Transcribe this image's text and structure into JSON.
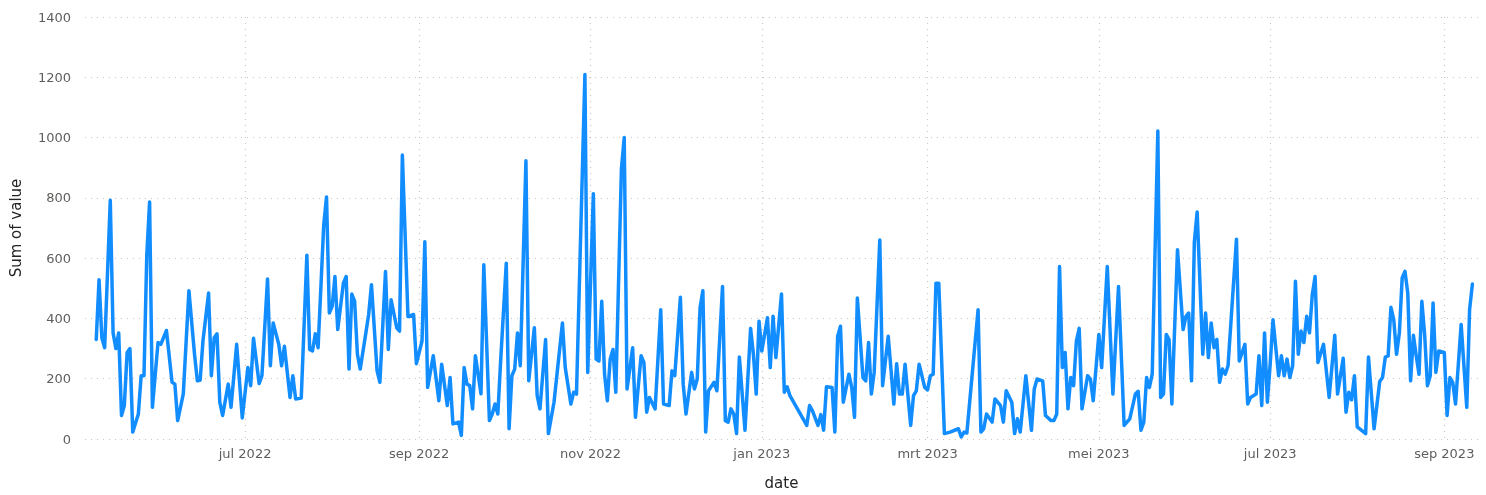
{
  "chart_data": {
    "type": "line",
    "xlabel": "date",
    "ylabel": "Sum of value",
    "grid": true,
    "marker": "none",
    "line_style": "solid",
    "xlim": [
      "2022-05-05",
      "2023-09-13"
    ],
    "xticks": [
      {
        "value": "2022-07-01",
        "label": "jul 2022"
      },
      {
        "value": "2022-09-01",
        "label": "sep 2022"
      },
      {
        "value": "2022-11-01",
        "label": "nov 2022"
      },
      {
        "value": "2023-01-01",
        "label": "jan 2023"
      },
      {
        "value": "2023-03-01",
        "label": "mrt 2023"
      },
      {
        "value": "2023-05-01",
        "label": "mei 2023"
      },
      {
        "value": "2023-07-01",
        "label": "jul 2023"
      },
      {
        "value": "2023-09-01",
        "label": "sep 2023"
      }
    ],
    "ylim": [
      0,
      1400
    ],
    "yticks": [
      0,
      200,
      400,
      600,
      800,
      1000,
      1200,
      1400
    ],
    "series": [
      {
        "color": "#118dff",
        "x": [
          "2022-05-09",
          "2022-05-10",
          "2022-05-11",
          "2022-05-12",
          "2022-05-14",
          "2022-05-15",
          "2022-05-16",
          "2022-05-17",
          "2022-05-18",
          "2022-05-19",
          "2022-05-20",
          "2022-05-21",
          "2022-05-22",
          "2022-05-24",
          "2022-05-25",
          "2022-05-26",
          "2022-05-27",
          "2022-05-28",
          "2022-05-29",
          "2022-05-31",
          "2022-06-01",
          "2022-06-03",
          "2022-06-05",
          "2022-06-06",
          "2022-06-07",
          "2022-06-09",
          "2022-06-11",
          "2022-06-13",
          "2022-06-14",
          "2022-06-15",
          "2022-06-16",
          "2022-06-18",
          "2022-06-19",
          "2022-06-20",
          "2022-06-21",
          "2022-06-22",
          "2022-06-23",
          "2022-06-25",
          "2022-06-26",
          "2022-06-28",
          "2022-06-30",
          "2022-07-02",
          "2022-07-03",
          "2022-07-04",
          "2022-07-06",
          "2022-07-07",
          "2022-07-09",
          "2022-07-10",
          "2022-07-11",
          "2022-07-13",
          "2022-07-14",
          "2022-07-15",
          "2022-07-17",
          "2022-07-18",
          "2022-07-19",
          "2022-07-21",
          "2022-07-23",
          "2022-07-24",
          "2022-07-25",
          "2022-07-26",
          "2022-07-27",
          "2022-07-29",
          "2022-07-30",
          "2022-07-31",
          "2022-08-01",
          "2022-08-02",
          "2022-08-03",
          "2022-08-05",
          "2022-08-06",
          "2022-08-07",
          "2022-08-08",
          "2022-08-09",
          "2022-08-10",
          "2022-08-11",
          "2022-08-13",
          "2022-08-14",
          "2022-08-15",
          "2022-08-17",
          "2022-08-18",
          "2022-08-20",
          "2022-08-21",
          "2022-08-22",
          "2022-08-24",
          "2022-08-25",
          "2022-08-26",
          "2022-08-28",
          "2022-08-30",
          "2022-08-31",
          "2022-09-02",
          "2022-09-03",
          "2022-09-04",
          "2022-09-06",
          "2022-09-08",
          "2022-09-09",
          "2022-09-11",
          "2022-09-12",
          "2022-09-13",
          "2022-09-15",
          "2022-09-16",
          "2022-09-17",
          "2022-09-18",
          "2022-09-19",
          "2022-09-20",
          "2022-09-21",
          "2022-09-23",
          "2022-09-24",
          "2022-09-26",
          "2022-09-27",
          "2022-09-28",
          "2022-09-29",
          "2022-09-30",
          "2022-10-02",
          "2022-10-03",
          "2022-10-04",
          "2022-10-05",
          "2022-10-06",
          "2022-10-07",
          "2022-10-09",
          "2022-10-10",
          "2022-10-12",
          "2022-10-13",
          "2022-10-14",
          "2022-10-16",
          "2022-10-17",
          "2022-10-19",
          "2022-10-22",
          "2022-10-23",
          "2022-10-25",
          "2022-10-26",
          "2022-10-27",
          "2022-10-30",
          "2022-10-31",
          "2022-11-02",
          "2022-11-03",
          "2022-11-04",
          "2022-11-05",
          "2022-11-06",
          "2022-11-07",
          "2022-11-08",
          "2022-11-09",
          "2022-11-10",
          "2022-11-12",
          "2022-11-13",
          "2022-11-14",
          "2022-11-16",
          "2022-11-17",
          "2022-11-19",
          "2022-11-20",
          "2022-11-21",
          "2022-11-22",
          "2022-11-24",
          "2022-11-26",
          "2022-11-27",
          "2022-11-29",
          "2022-11-30",
          "2022-12-01",
          "2022-12-03",
          "2022-12-04",
          "2022-12-05",
          "2022-12-07",
          "2022-12-08",
          "2022-12-09",
          "2022-12-10",
          "2022-12-11",
          "2022-12-12",
          "2022-12-13",
          "2022-12-15",
          "2022-12-16",
          "2022-12-18",
          "2022-12-19",
          "2022-12-20",
          "2022-12-21",
          "2022-12-22",
          "2022-12-23",
          "2022-12-24",
          "2022-12-26",
          "2022-12-28",
          "2022-12-29",
          "2022-12-30",
          "2022-12-31",
          "2023-01-01",
          "2023-01-03",
          "2023-01-04",
          "2023-01-05",
          "2023-01-06",
          "2023-01-08",
          "2023-01-09",
          "2023-01-10",
          "2023-01-11",
          "2023-01-17",
          "2023-01-18",
          "2023-01-19",
          "2023-01-21",
          "2023-01-22",
          "2023-01-23",
          "2023-01-24",
          "2023-01-26",
          "2023-01-27",
          "2023-01-28",
          "2023-01-29",
          "2023-01-30",
          "2023-02-01",
          "2023-02-02",
          "2023-02-03",
          "2023-02-04",
          "2023-02-06",
          "2023-02-07",
          "2023-02-08",
          "2023-02-09",
          "2023-02-10",
          "2023-02-12",
          "2023-02-13",
          "2023-02-15",
          "2023-02-17",
          "2023-02-18",
          "2023-02-19",
          "2023-02-20",
          "2023-02-21",
          "2023-02-23",
          "2023-02-24",
          "2023-02-25",
          "2023-02-26",
          "2023-02-28",
          "2023-03-01",
          "2023-03-02",
          "2023-03-03",
          "2023-03-04",
          "2023-03-05",
          "2023-03-07",
          "2023-03-09",
          "2023-03-12",
          "2023-03-13",
          "2023-03-14",
          "2023-03-15",
          "2023-03-19",
          "2023-03-20",
          "2023-03-21",
          "2023-03-22",
          "2023-03-24",
          "2023-03-25",
          "2023-03-27",
          "2023-03-28",
          "2023-03-29",
          "2023-03-31",
          "2023-04-01",
          "2023-04-02",
          "2023-04-03",
          "2023-04-05",
          "2023-04-07",
          "2023-04-08",
          "2023-04-09",
          "2023-04-11",
          "2023-04-12",
          "2023-04-14",
          "2023-04-15",
          "2023-04-16",
          "2023-04-17",
          "2023-04-18",
          "2023-04-19",
          "2023-04-20",
          "2023-04-21",
          "2023-04-22",
          "2023-04-23",
          "2023-04-24",
          "2023-04-25",
          "2023-04-27",
          "2023-04-28",
          "2023-04-29",
          "2023-05-01",
          "2023-05-02",
          "2023-05-04",
          "2023-05-06",
          "2023-05-08",
          "2023-05-10",
          "2023-05-12",
          "2023-05-14",
          "2023-05-15",
          "2023-05-16",
          "2023-05-17",
          "2023-05-18",
          "2023-05-19",
          "2023-05-20",
          "2023-05-22",
          "2023-05-23",
          "2023-05-24",
          "2023-05-25",
          "2023-05-26",
          "2023-05-27",
          "2023-05-29",
          "2023-05-31",
          "2023-06-01",
          "2023-06-02",
          "2023-06-03",
          "2023-06-04",
          "2023-06-05",
          "2023-06-07",
          "2023-06-08",
          "2023-06-09",
          "2023-06-10",
          "2023-06-11",
          "2023-06-12",
          "2023-06-13",
          "2023-06-14",
          "2023-06-15",
          "2023-06-16",
          "2023-06-19",
          "2023-06-20",
          "2023-06-22",
          "2023-06-23",
          "2023-06-24",
          "2023-06-26",
          "2023-06-27",
          "2023-06-28",
          "2023-06-29",
          "2023-06-30",
          "2023-07-01",
          "2023-07-02",
          "2023-07-04",
          "2023-07-05",
          "2023-07-06",
          "2023-07-07",
          "2023-07-08",
          "2023-07-09",
          "2023-07-10",
          "2023-07-11",
          "2023-07-12",
          "2023-07-13",
          "2023-07-14",
          "2023-07-15",
          "2023-07-16",
          "2023-07-17",
          "2023-07-18",
          "2023-07-20",
          "2023-07-22",
          "2023-07-24",
          "2023-07-25",
          "2023-07-27",
          "2023-07-28",
          "2023-07-29",
          "2023-07-30",
          "2023-07-31",
          "2023-08-01",
          "2023-08-04",
          "2023-08-05",
          "2023-08-07",
          "2023-08-09",
          "2023-08-10",
          "2023-08-11",
          "2023-08-12",
          "2023-08-13",
          "2023-08-14",
          "2023-08-15",
          "2023-08-16",
          "2023-08-17",
          "2023-08-18",
          "2023-08-19",
          "2023-08-20",
          "2023-08-21",
          "2023-08-22",
          "2023-08-23",
          "2023-08-24",
          "2023-08-25",
          "2023-08-26",
          "2023-08-27",
          "2023-08-28",
          "2023-08-29",
          "2023-08-30",
          "2023-09-01",
          "2023-09-02",
          "2023-09-03",
          "2023-09-04",
          "2023-09-05",
          "2023-09-07",
          "2023-09-09",
          "2023-09-10",
          "2023-09-11"
        ],
        "values": [
          330,
          528,
          336,
          303,
          792,
          352,
          300,
          352,
          78,
          111,
          287,
          300,
          23,
          83,
          210,
          210,
          610,
          786,
          105,
          320,
          314,
          360,
          188,
          182,
          61,
          150,
          492,
          281,
          193,
          195,
          325,
          484,
          210,
          336,
          349,
          122,
          78,
          182,
          105,
          314,
          70,
          237,
          177,
          334,
          184,
          210,
          531,
          243,
          385,
          314,
          243,
          308,
          138,
          210,
          133,
          136,
          610,
          297,
          292,
          349,
          303,
          709,
          803,
          418,
          440,
          539,
          363,
          517,
          539,
          232,
          481,
          457,
          281,
          232,
          352,
          413,
          512,
          226,
          188,
          556,
          297,
          462,
          369,
          358,
          942,
          406,
          413,
          250,
          325,
          654,
          171,
          276,
          127,
          248,
          111,
          204,
          50,
          56,
          12,
          237,
          182,
          177,
          100,
          276,
          150,
          578,
          61,
          83,
          116,
          83,
          259,
          583,
          34,
          210,
          232,
          352,
          243,
          923,
          193,
          369,
          144,
          100,
          330,
          18,
          122,
          385,
          237,
          116,
          155,
          149,
          1209,
          221,
          814,
          265,
          259,
          457,
          215,
          127,
          265,
          297,
          155,
          896,
          1000,
          166,
          303,
          72,
          276,
          254,
          89,
          138,
          100,
          429,
          116,
          111,
          226,
          210,
          470,
          182,
          83,
          221,
          166,
          199,
          435,
          492,
          23,
          160,
          188,
          160,
          506,
          61,
          56,
          100,
          83,
          18,
          272,
          29,
          367,
          281,
          149,
          391,
          292,
          402,
          237,
          407,
          270,
          481,
          155,
          173,
          144,
          45,
          111,
          94,
          45,
          81,
          29,
          173,
          171,
          23,
          341,
          374,
          122,
          215,
          171,
          72,
          468,
          204,
          193,
          320,
          149,
          221,
          660,
          177,
          341,
          116,
          250,
          149,
          149,
          248,
          45,
          144,
          160,
          248,
          171,
          163,
          210,
          215,
          517,
          517,
          18,
          23,
          34,
          7,
          23,
          20,
          429,
          23,
          34,
          83,
          56,
          133,
          111,
          56,
          160,
          122,
          18,
          67,
          23,
          210,
          29,
          166,
          199,
          193,
          78,
          61,
          61,
          83,
          572,
          237,
          287,
          100,
          204,
          177,
          325,
          367,
          100,
          210,
          199,
          127,
          347,
          237,
          572,
          149,
          506,
          45,
          67,
          149,
          158,
          29,
          56,
          204,
          171,
          215,
          1022,
          138,
          149,
          347,
          330,
          116,
          628,
          363,
          407,
          418,
          193,
          654,
          753,
          281,
          418,
          270,
          385,
          303,
          330,
          188,
          232,
          215,
          243,
          663,
          259,
          314,
          116,
          138,
          149,
          276,
          111,
          352,
          122,
          248,
          396,
          210,
          276,
          210,
          265,
          204,
          243,
          523,
          281,
          358,
          320,
          407,
          352,
          479,
          539,
          254,
          314,
          138,
          344,
          149,
          268,
          89,
          155,
          130,
          210,
          40,
          18,
          272,
          34,
          191,
          204,
          272,
          276,
          437,
          396,
          281,
          352,
          534,
          556,
          484,
          193,
          344,
          276,
          215,
          457,
          347,
          177,
          210,
          451,
          221,
          292,
          287,
          78,
          204,
          188,
          116,
          380,
          105,
          429,
          514
        ]
      }
    ]
  }
}
